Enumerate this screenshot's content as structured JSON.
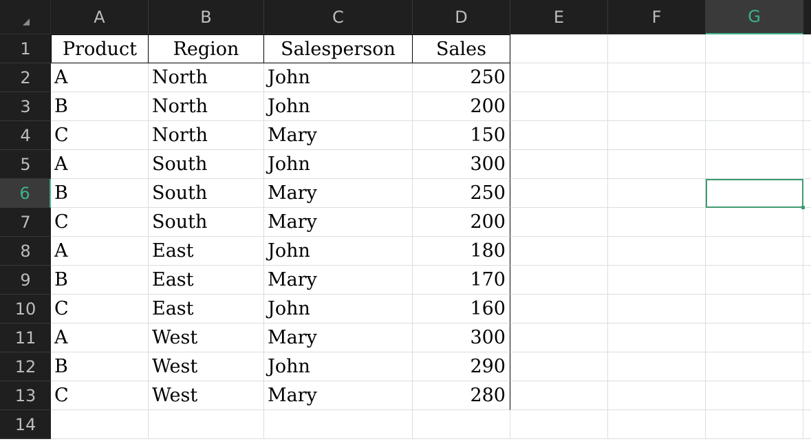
{
  "columns": [
    "A",
    "B",
    "C",
    "D",
    "E",
    "F",
    "G"
  ],
  "active_column": "G",
  "active_row": 6,
  "rows": [
    [
      "Product",
      "Region",
      "Salesperson",
      "Sales",
      "",
      "",
      ""
    ],
    [
      "A",
      "North",
      "John",
      "250",
      "",
      "",
      ""
    ],
    [
      "B",
      "North",
      "John",
      "200",
      "",
      "",
      ""
    ],
    [
      "C",
      "North",
      "Mary",
      "150",
      "",
      "",
      ""
    ],
    [
      "A",
      "South",
      "John",
      "300",
      "",
      "",
      ""
    ],
    [
      "B",
      "South",
      "Mary",
      "250",
      "",
      "",
      ""
    ],
    [
      "C",
      "South",
      "Mary",
      "200",
      "",
      "",
      ""
    ],
    [
      "A",
      "East",
      "John",
      "180",
      "",
      "",
      ""
    ],
    [
      "B",
      "East",
      "Mary",
      "170",
      "",
      "",
      ""
    ],
    [
      "C",
      "East",
      "John",
      "160",
      "",
      "",
      ""
    ],
    [
      "A",
      "West",
      "Mary",
      "300",
      "",
      "",
      ""
    ],
    [
      "B",
      "West",
      "John",
      "290",
      "",
      "",
      ""
    ],
    [
      "C",
      "West",
      "Mary",
      "280",
      "",
      "",
      ""
    ],
    [
      "",
      "",
      "",
      "",
      "",
      "",
      ""
    ]
  ],
  "colors": {
    "header_bg": "#1f1f1f",
    "active_header_bg": "#3a3a3a",
    "accent": "#3db38a",
    "gridline": "#d9dde3"
  }
}
